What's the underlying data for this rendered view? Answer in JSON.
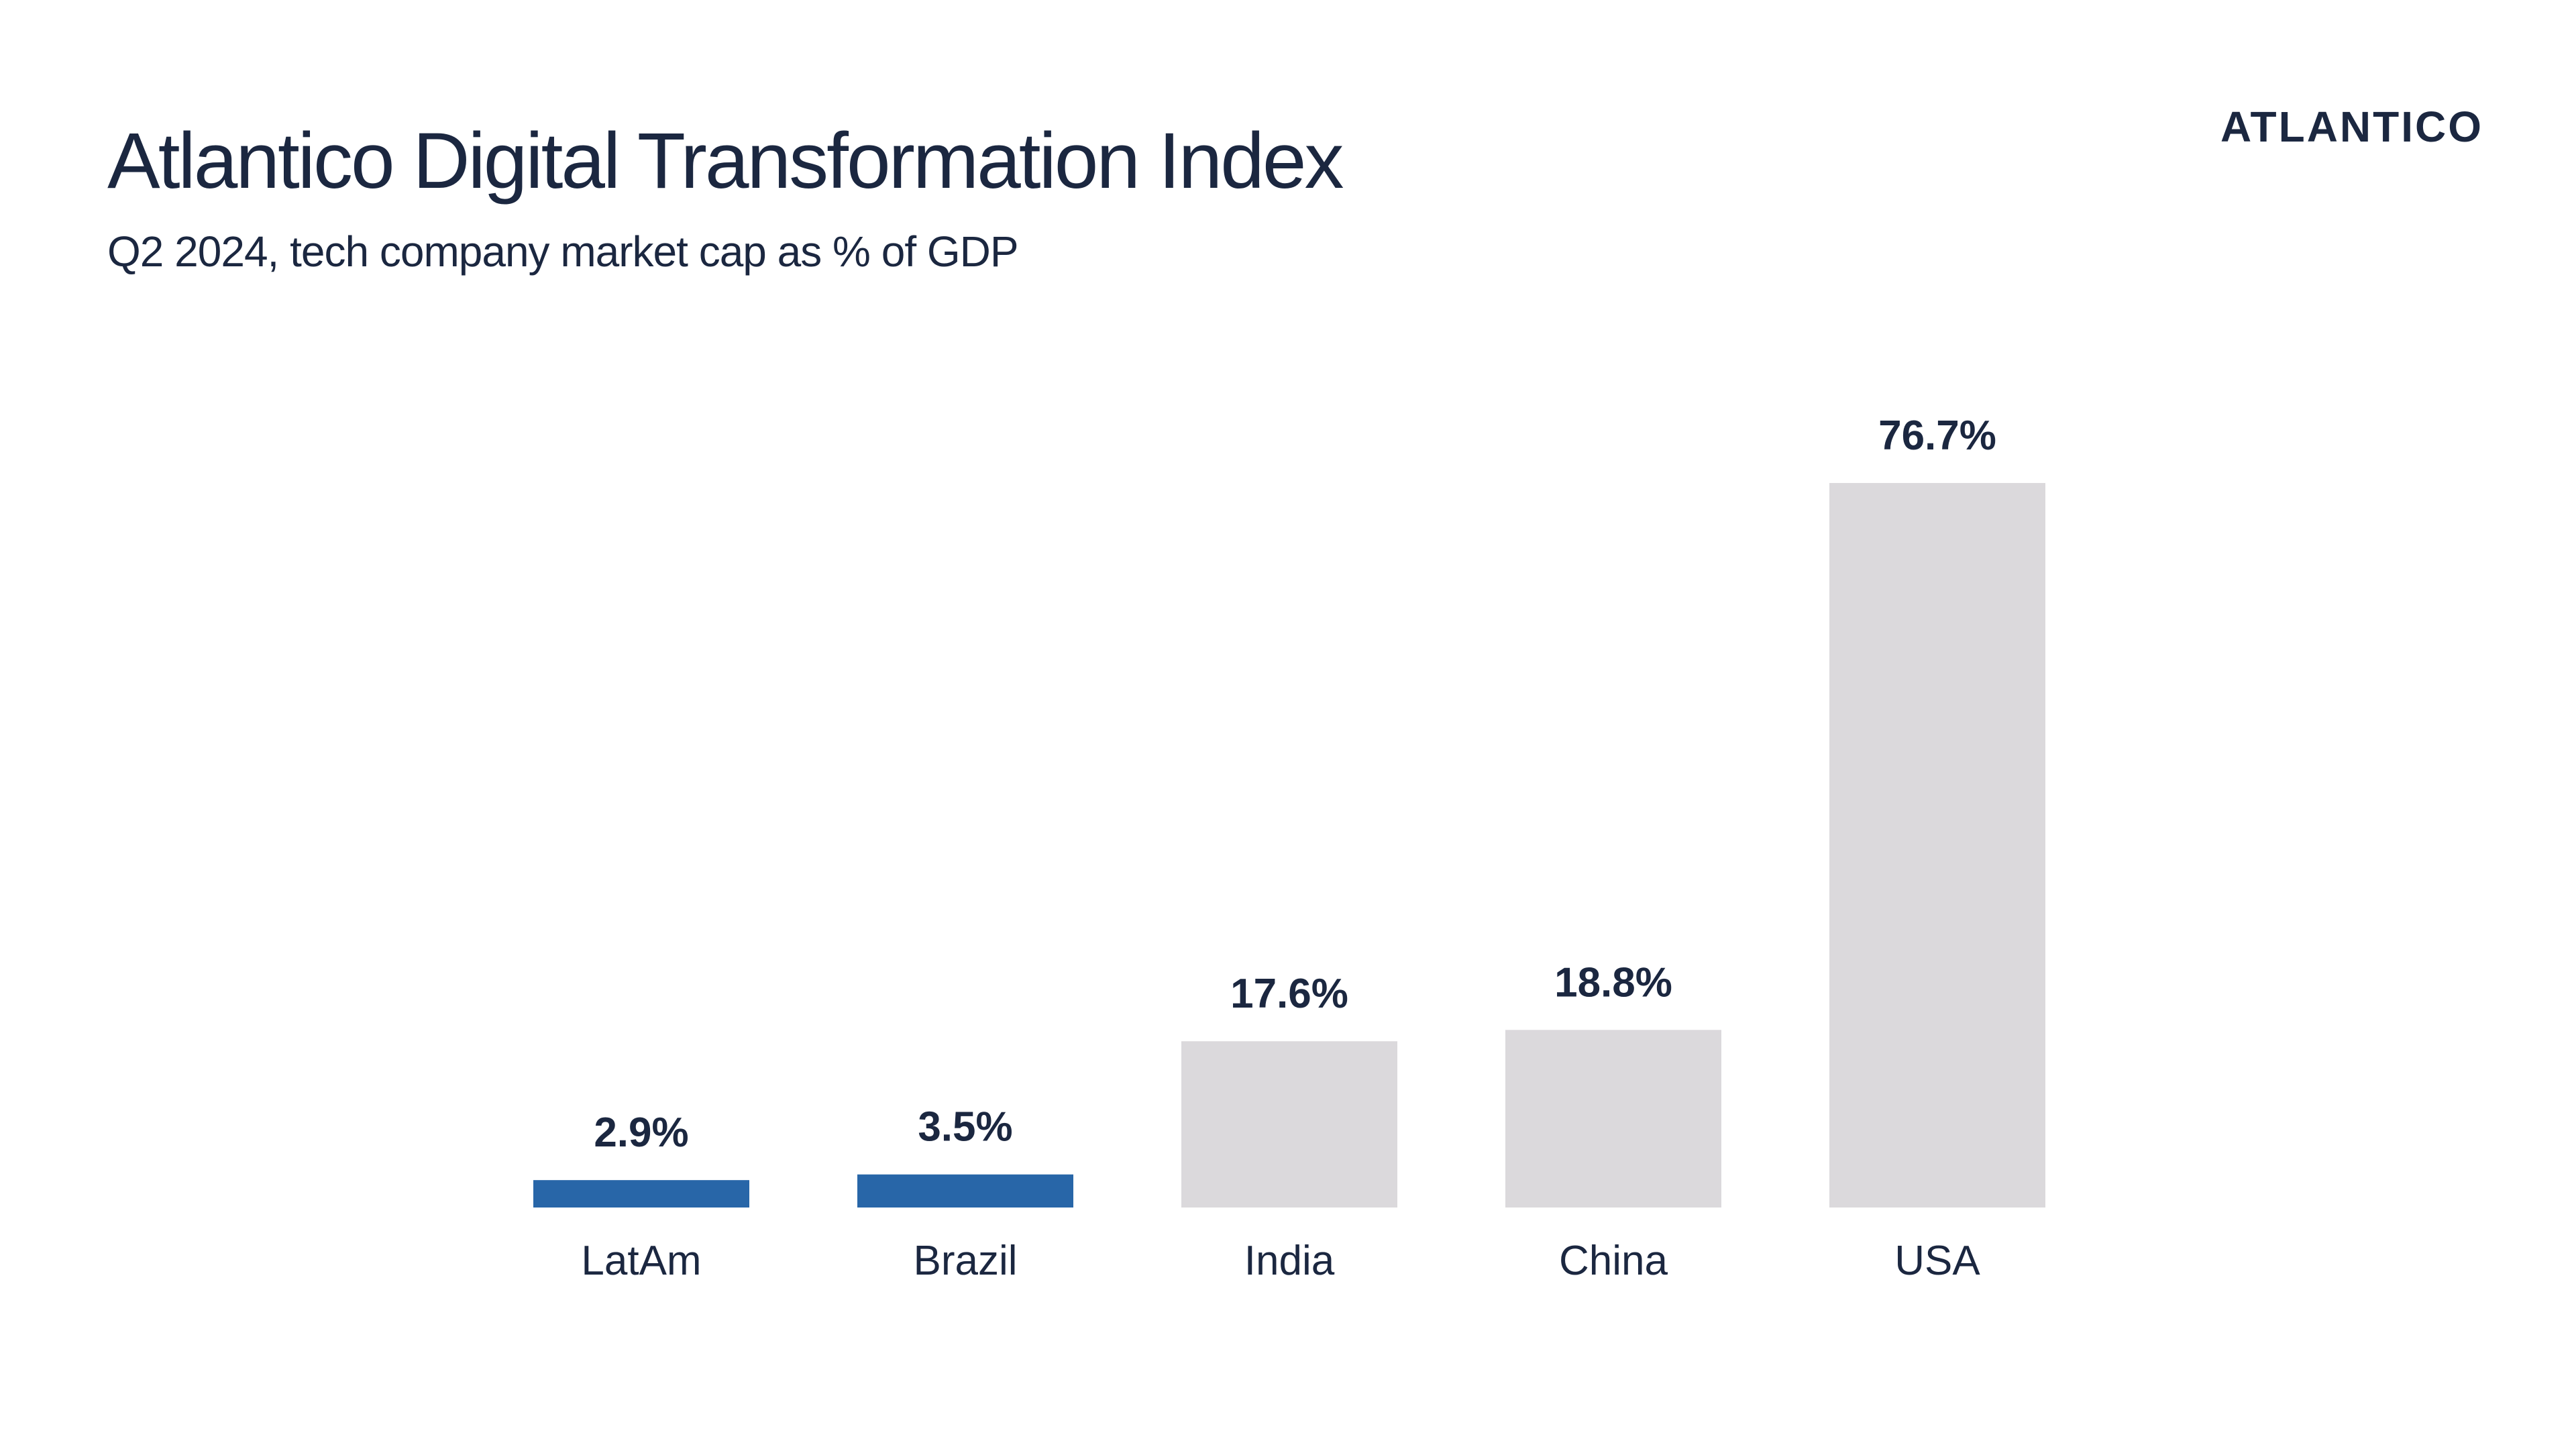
{
  "header": {
    "title": "Atlantico Digital Transformation Index",
    "subtitle": "Q2 2024, tech company market cap as % of GDP",
    "logo_text": "ATLANTICO"
  },
  "colors": {
    "highlight": "#2866a8",
    "muted": "#dbd9dc",
    "text": "#1b2740"
  },
  "chart_data": {
    "type": "bar",
    "categories": [
      "LatAm",
      "Brazil",
      "India",
      "China",
      "USA"
    ],
    "values": [
      2.9,
      3.5,
      17.6,
      18.8,
      76.7
    ],
    "value_labels": [
      "2.9%",
      "3.5%",
      "17.6%",
      "18.8%",
      "76.7%"
    ],
    "bar_colors": [
      "#2866a8",
      "#2866a8",
      "#dbd9dc",
      "#dbd9dc",
      "#dbd9dc"
    ],
    "title": "Atlantico Digital Transformation Index",
    "subtitle": "Q2 2024, tech company market cap as % of GDP",
    "xlabel": "",
    "ylabel": "",
    "ylim": [
      0,
      76.7
    ],
    "grid": false,
    "legend": "none"
  }
}
